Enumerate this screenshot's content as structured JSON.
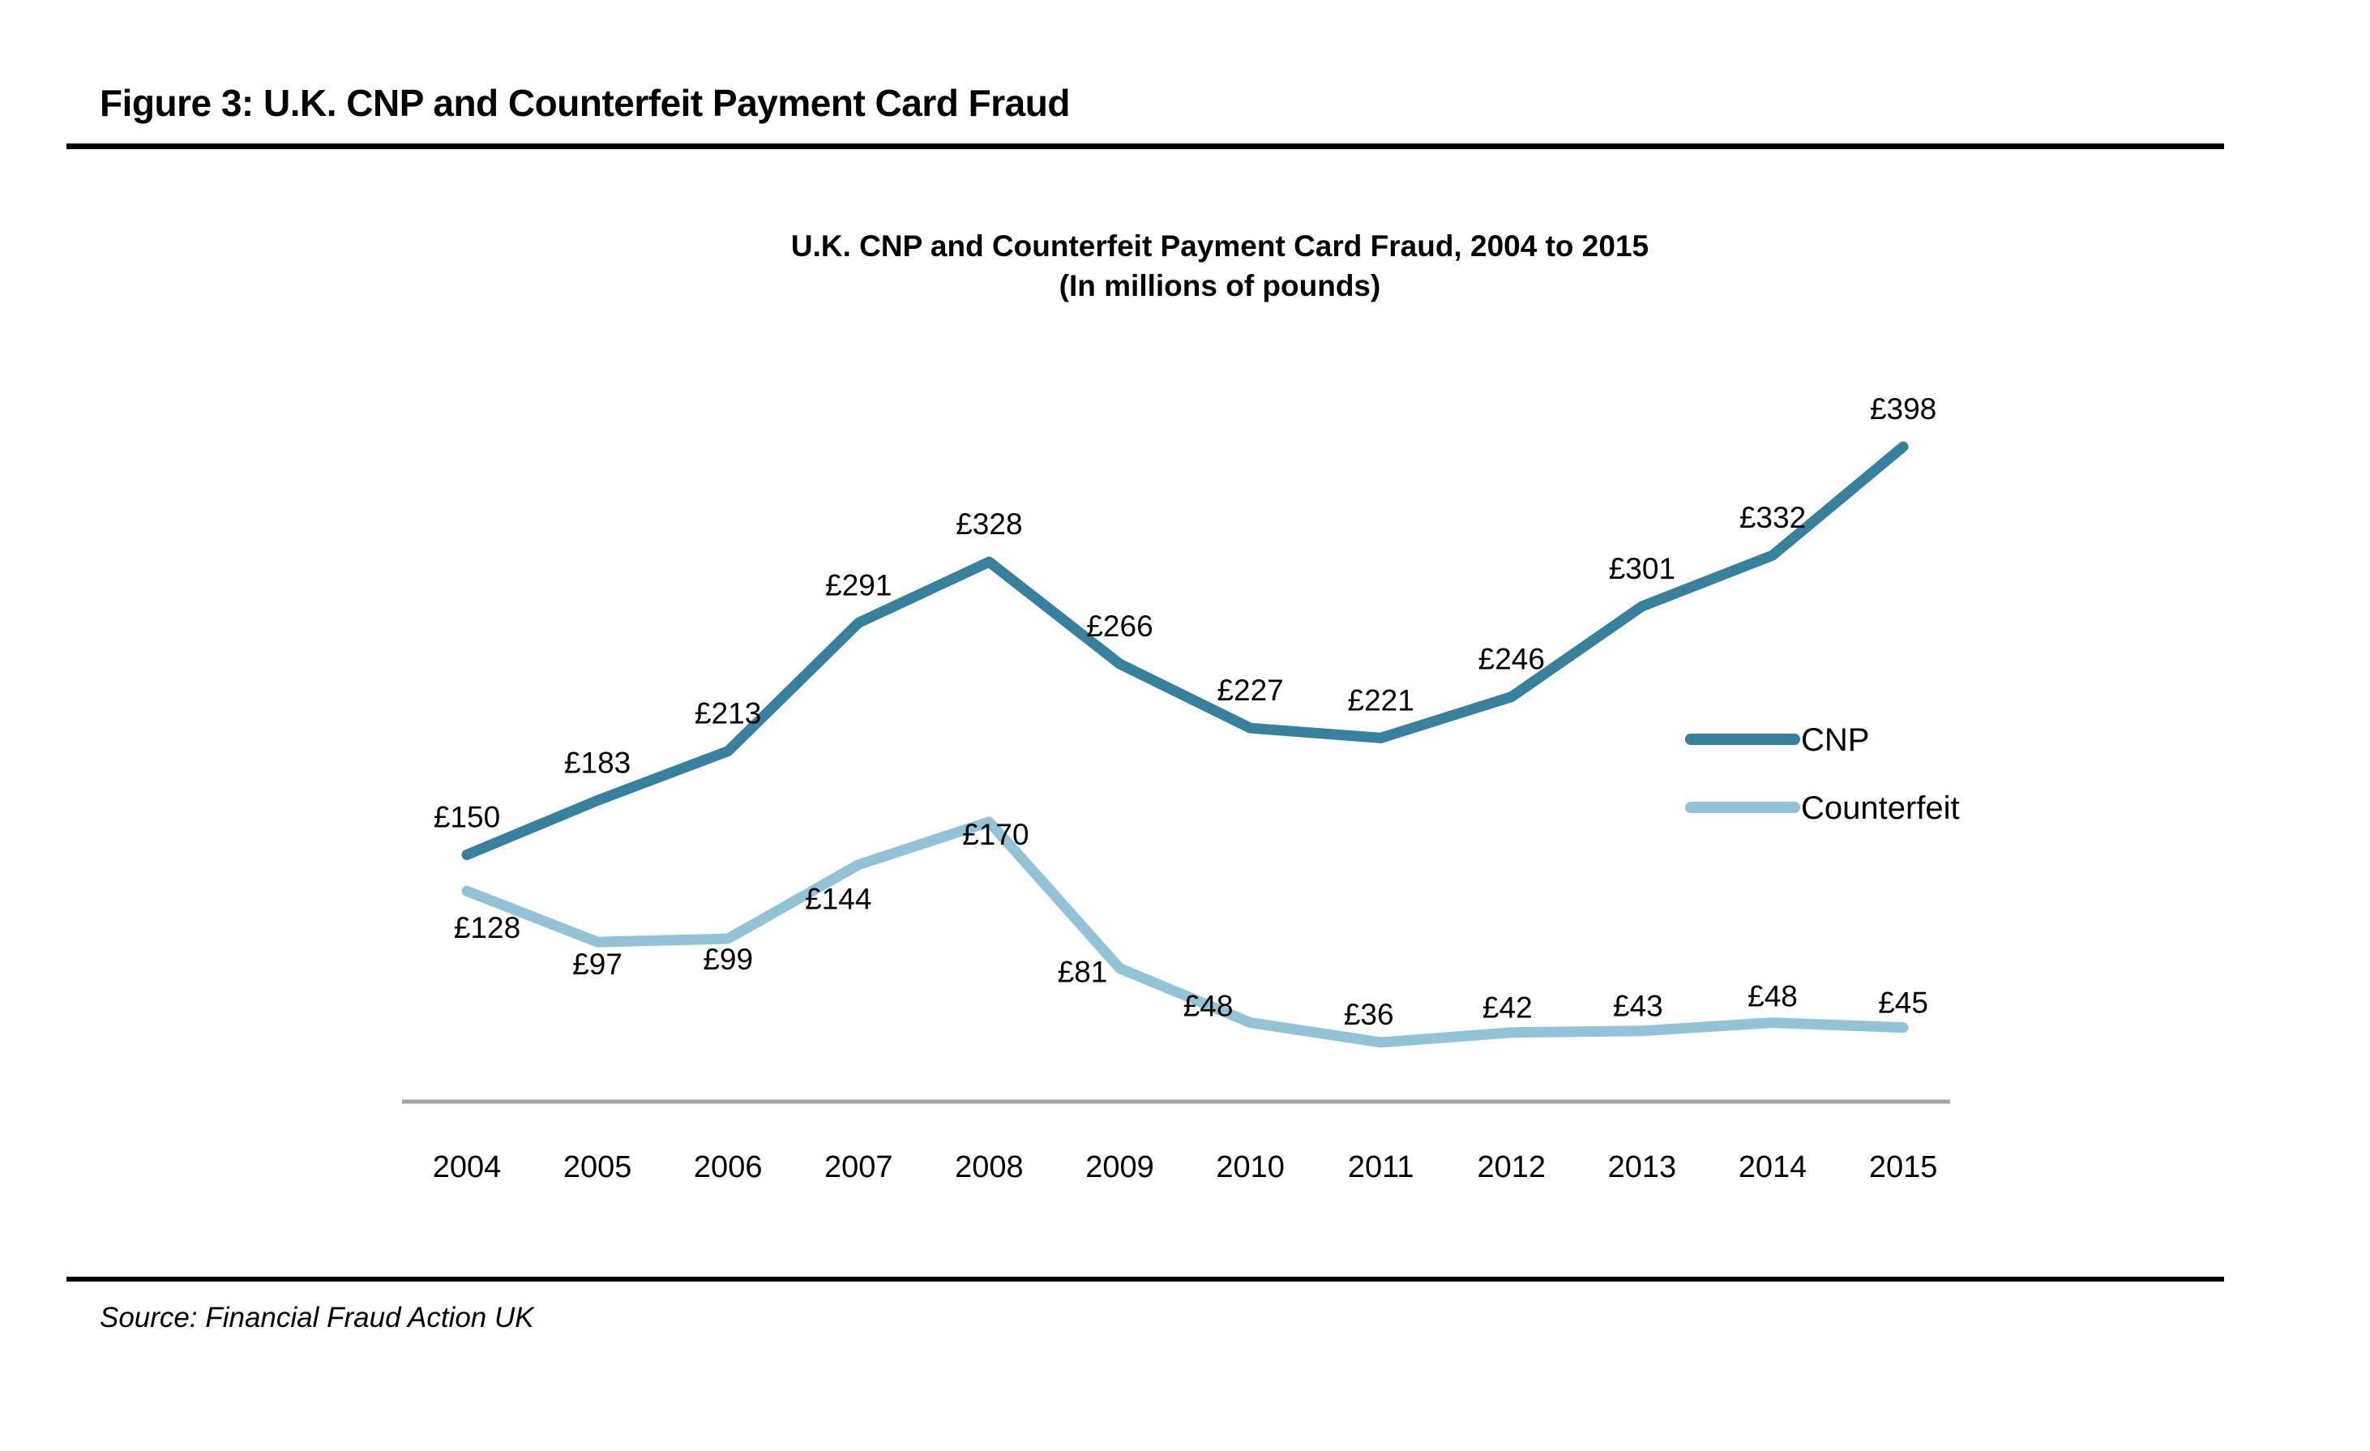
{
  "figure": {
    "heading": "Figure 3: U.K. CNP and Counterfeit Payment Card Fraud",
    "source": "Source: Financial Fraud Action UK"
  },
  "chart_data": {
    "type": "line",
    "title": "U.K. CNP and Counterfeit Payment Card Fraud, 2004 to 2015",
    "subtitle": "(In millions of pounds)",
    "categories": [
      "2004",
      "2005",
      "2006",
      "2007",
      "2008",
      "2009",
      "2010",
      "2011",
      "2012",
      "2013",
      "2014",
      "2015"
    ],
    "series": [
      {
        "name": "CNP",
        "color": "#37809e",
        "values": [
          150,
          183,
          213,
          291,
          328,
          266,
          227,
          221,
          246,
          301,
          332,
          398
        ]
      },
      {
        "name": "Counterfeit",
        "color": "#93c3d6",
        "values": [
          128,
          97,
          99,
          144,
          170,
          81,
          48,
          36,
          42,
          43,
          48,
          45
        ]
      }
    ],
    "value_prefix": "£",
    "data_labels": true,
    "xlabel": "",
    "ylabel": "",
    "ylim": [
      0,
      450
    ],
    "grid": false,
    "legend_position": "right-inside",
    "axis_color": "#a3a3a3"
  }
}
